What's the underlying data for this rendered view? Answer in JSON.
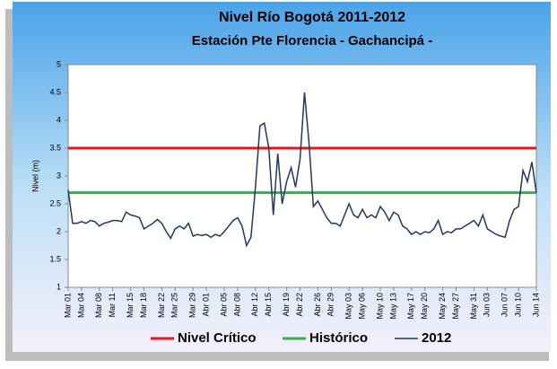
{
  "chart_data": {
    "type": "line",
    "title": "Nivel Río Bogotá 2011-2012",
    "subtitle": "Estación Pte Florencia - Gachancipá -",
    "y_label": "Nivel (m)",
    "categories": [
      "Mar 01",
      null,
      null,
      "Mar 04",
      null,
      null,
      null,
      "Mar 08",
      null,
      null,
      "Mar 11",
      null,
      null,
      null,
      "Mar 15",
      null,
      null,
      "Mar 18",
      null,
      null,
      null,
      "Mar 22",
      null,
      null,
      "Mar 25",
      null,
      null,
      null,
      "Mar 29",
      null,
      null,
      "Abr 01",
      null,
      null,
      null,
      "Abr 05",
      null,
      null,
      "Abr 08",
      null,
      null,
      null,
      "Abr 12",
      null,
      null,
      "Abr 15",
      null,
      null,
      null,
      "Abr 19",
      null,
      null,
      "Abr 22",
      null,
      null,
      null,
      "Abr 26",
      null,
      null,
      "Abr 29",
      null,
      null,
      null,
      "May 03",
      null,
      null,
      "May 06",
      null,
      null,
      null,
      "May 10",
      null,
      null,
      "May 13",
      null,
      null,
      null,
      "May 17",
      null,
      null,
      "May 20",
      null,
      null,
      null,
      "May 24",
      null,
      null,
      "May 27",
      null,
      null,
      null,
      "May 31",
      null,
      null,
      "Jun 03",
      null,
      null,
      null,
      "Jun 07",
      null,
      null,
      "Jun 10",
      null,
      null,
      null,
      "Jun 14"
    ],
    "reference_lines": [
      {
        "name": "Nivel Crítico",
        "color": "#e8141e",
        "value": 3.5
      },
      {
        "name": "Histórico",
        "color": "#33b04a",
        "value": 2.7
      }
    ],
    "series": [
      {
        "name": "2012",
        "color": "#1f3864",
        "values": [
          2.75,
          2.15,
          2.15,
          2.18,
          2.15,
          2.2,
          2.18,
          2.1,
          2.15,
          2.17,
          2.2,
          2.2,
          2.18,
          2.35,
          2.3,
          2.28,
          2.25,
          2.05,
          2.1,
          2.15,
          2.22,
          2.15,
          2.0,
          1.88,
          2.05,
          2.1,
          2.05,
          2.15,
          1.92,
          1.95,
          1.93,
          1.95,
          1.9,
          1.95,
          1.92,
          2.0,
          2.1,
          2.2,
          2.25,
          2.1,
          1.75,
          1.9,
          2.8,
          3.9,
          3.95,
          3.5,
          2.3,
          3.4,
          2.5,
          2.9,
          3.15,
          2.8,
          3.3,
          4.5,
          3.6,
          2.45,
          2.55,
          2.4,
          2.25,
          2.15,
          2.15,
          2.1,
          2.3,
          2.5,
          2.3,
          2.25,
          2.4,
          2.25,
          2.3,
          2.25,
          2.45,
          2.35,
          2.2,
          2.35,
          2.3,
          2.1,
          2.05,
          1.95,
          2.0,
          1.95,
          2.0,
          1.98,
          2.05,
          2.2,
          1.95,
          2.0,
          1.98,
          2.05,
          2.05,
          2.1,
          2.15,
          2.2,
          2.1,
          2.3,
          2.05,
          2.0,
          1.95,
          1.92,
          1.9,
          2.2,
          2.4,
          2.45,
          3.1,
          2.9,
          3.25,
          2.7
        ]
      }
    ],
    "ylim": [
      1,
      5
    ],
    "yticks": [
      1,
      1.5,
      2,
      2.5,
      3,
      3.5,
      4,
      4.5,
      5
    ]
  }
}
